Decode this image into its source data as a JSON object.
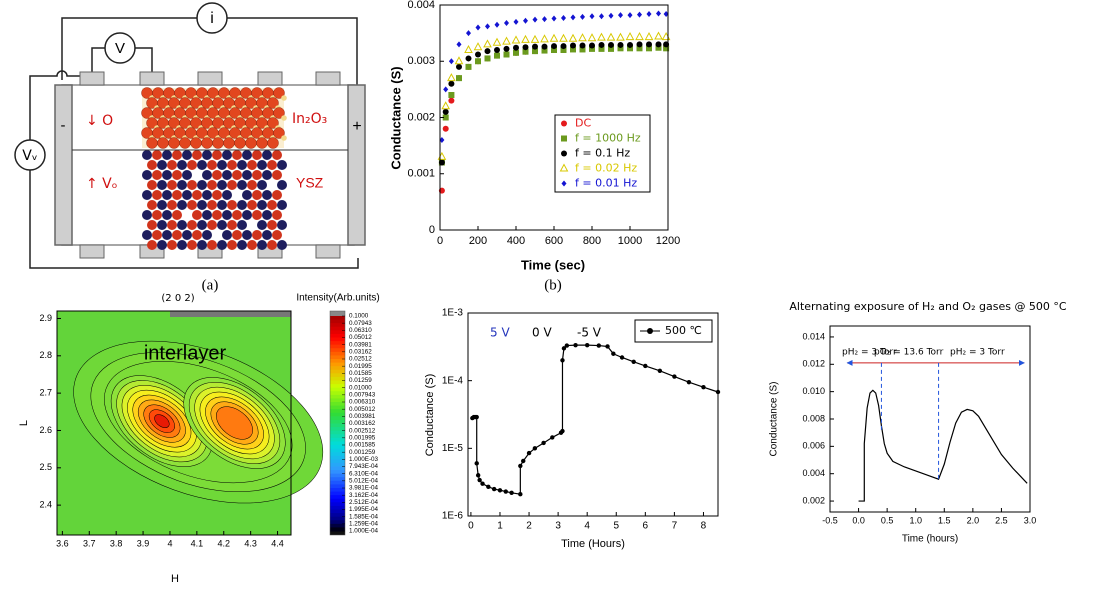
{
  "diagram": {
    "current_meter": "i",
    "voltmeter": "V",
    "voltage_source": "Vᵥ",
    "minus": "-",
    "plus": "+",
    "oxygen_label": "↓ O",
    "top_layer": "In₂O₃",
    "vacancy_label": "↑ Vₒ",
    "bottom_layer": "YSZ",
    "caption": "(a)"
  },
  "chart_data": [
    {
      "type": "scatter",
      "caption": "(b)",
      "xlabel": "Time (sec)",
      "ylabel": "Conductance (S)",
      "xlim": [
        0,
        1200
      ],
      "ylim": [
        0,
        0.004
      ],
      "xticks": [
        0,
        200,
        400,
        600,
        800,
        1000,
        1200
      ],
      "yticks": [
        0,
        0.001,
        0.002,
        0.003,
        0.004
      ],
      "legend": "lower right",
      "x": [
        10,
        30,
        60,
        100,
        150,
        200,
        250,
        300,
        350,
        400,
        450,
        500,
        550,
        600,
        650,
        700,
        750,
        800,
        850,
        900,
        950,
        1000,
        1050,
        1100,
        1150,
        1190
      ],
      "series": [
        {
          "name": "DC",
          "color": "#e41a1c",
          "marker": "circle",
          "values": [
            0.0007,
            0.0018,
            0.0023,
            0.0027,
            0.0029,
            0.003,
            0.00305,
            0.0031,
            0.00312,
            0.00315,
            0.00317,
            0.00318,
            0.0032,
            0.0032,
            0.00321,
            0.00322,
            0.00322,
            0.00323,
            0.00323,
            0.00324,
            0.00324,
            0.00325,
            0.00325,
            0.00325,
            0.00326,
            0.00326
          ]
        },
        {
          "name": "f = 1000 Hz",
          "color": "#6b9a1e",
          "marker": "square",
          "values": [
            0.0012,
            0.002,
            0.0024,
            0.0027,
            0.0029,
            0.003,
            0.00305,
            0.0031,
            0.00312,
            0.00315,
            0.00317,
            0.00318,
            0.00319,
            0.0032,
            0.0032,
            0.00321,
            0.00321,
            0.00322,
            0.00322,
            0.00322,
            0.00323,
            0.00323,
            0.00323,
            0.00323,
            0.00324,
            0.00323
          ]
        },
        {
          "name": "f = 0.1 Hz",
          "color": "#000000",
          "marker": "circle",
          "values": [
            0.0012,
            0.0021,
            0.0026,
            0.0029,
            0.00305,
            0.00312,
            0.00318,
            0.0032,
            0.00322,
            0.00324,
            0.00325,
            0.00326,
            0.00326,
            0.00327,
            0.00327,
            0.00328,
            0.00328,
            0.00328,
            0.00329,
            0.00329,
            0.00329,
            0.00329,
            0.0033,
            0.0033,
            0.0033,
            0.0033
          ]
        },
        {
          "name": "f = 0.02 Hz",
          "color": "#d8c800",
          "marker": "triangle",
          "values": [
            0.0013,
            0.0022,
            0.0027,
            0.003,
            0.0032,
            0.00325,
            0.0033,
            0.00333,
            0.00335,
            0.00337,
            0.00338,
            0.00338,
            0.00339,
            0.0034,
            0.0034,
            0.0034,
            0.00341,
            0.00341,
            0.00342,
            0.00342,
            0.00342,
            0.00343,
            0.00343,
            0.00343,
            0.00344,
            0.00343
          ]
        },
        {
          "name": "f = 0.01 Hz",
          "color": "#1414d2",
          "marker": "diamond",
          "values": [
            0.0016,
            0.0025,
            0.003,
            0.0033,
            0.0035,
            0.0036,
            0.00362,
            0.00365,
            0.00368,
            0.0037,
            0.00372,
            0.00374,
            0.00375,
            0.00376,
            0.00377,
            0.00378,
            0.00379,
            0.0038,
            0.0038,
            0.00381,
            0.00382,
            0.00382,
            0.00383,
            0.00384,
            0.00385,
            0.00384
          ]
        }
      ]
    },
    {
      "type": "contour",
      "title": "(2 0 2)",
      "xlabel": "H",
      "ylabel": "L",
      "annotation": "interlayer",
      "colorbar_label": "Intensity(Arb.units)",
      "xlim": [
        3.58,
        4.45
      ],
      "ylim": [
        2.32,
        2.92
      ],
      "xticks": [
        3.6,
        3.7,
        3.8,
        3.9,
        4.0,
        4.1,
        4.2,
        4.3,
        4.4
      ],
      "yticks": [
        2.4,
        2.5,
        2.6,
        2.7,
        2.8,
        2.9
      ],
      "peaks": [
        {
          "x": 3.97,
          "y": 2.625
        },
        {
          "x": 4.24,
          "y": 2.62
        }
      ],
      "log_c": true,
      "clim": [
        0.0001,
        0.1
      ],
      "cticks": [
        {
          "value": 0.1,
          "label": "0.1000"
        },
        0.07943,
        {
          "value": 0.0631,
          "label": "0.06310"
        },
        0.05012,
        0.03981,
        0.03162,
        0.02512,
        0.01995,
        0.01585,
        0.01259,
        {
          "value": 0.01,
          "label": "0.01000"
        },
        0.007943,
        {
          "value": 0.00631,
          "label": "0.006310"
        },
        0.005012,
        0.003981,
        0.003162,
        0.002512,
        0.001995,
        0.001585,
        0.001259,
        {
          "value": 0.001,
          "label": "1.000E-03"
        },
        {
          "value": 0.0007943,
          "label": "7.943E-04"
        },
        {
          "value": 0.000631,
          "label": "6.310E-04"
        },
        {
          "value": 0.0005012,
          "label": "5.012E-04"
        },
        {
          "value": 0.0003981,
          "label": "3.981E-04"
        },
        {
          "value": 0.0003162,
          "label": "3.162E-04"
        },
        {
          "value": 0.0002512,
          "label": "2.512E-04"
        },
        {
          "value": 0.0001995,
          "label": "1.995E-04"
        },
        {
          "value": 0.0001585,
          "label": "1.585E-04"
        },
        {
          "value": 0.0001259,
          "label": "1.259E-04"
        },
        {
          "value": 0.0001,
          "label": "1.000E-04"
        }
      ]
    },
    {
      "type": "line",
      "xlabel": "Time (Hours)",
      "ylabel": "Conductance (S)",
      "log_y": true,
      "xlim": [
        -0.1,
        8.5
      ],
      "ylim": [
        1e-06,
        0.001
      ],
      "xticks": [
        0,
        1,
        2,
        3,
        4,
        5,
        6,
        7,
        8
      ],
      "yticks": [
        {
          "value": 1e-06,
          "label": "1E-6"
        },
        {
          "value": 1e-05,
          "label": "1E-5"
        },
        {
          "value": 0.0001,
          "label": "1E-4"
        },
        {
          "value": 0.001,
          "label": "1E-3"
        }
      ],
      "annotations": [
        {
          "text": "5 V",
          "color": "#2233bb"
        },
        {
          "text": "0 V",
          "color": "#000000"
        },
        {
          "text": "-5 V",
          "color": "#000000"
        }
      ],
      "legend": "upper right",
      "x": [
        0.05,
        0.1,
        0.15,
        0.2,
        0.2,
        0.25,
        0.3,
        0.4,
        0.6,
        0.8,
        1.0,
        1.2,
        1.4,
        1.7,
        1.7,
        1.8,
        2.0,
        2.2,
        2.5,
        2.8,
        3.1,
        3.15,
        3.15,
        3.2,
        3.3,
        3.6,
        4.0,
        4.4,
        4.7,
        4.9,
        5.2,
        5.6,
        6.0,
        6.5,
        7.0,
        7.5,
        8.0,
        8.5
      ],
      "series": [
        {
          "name": "500 ℃",
          "color": "#000000",
          "marker": "circle",
          "values": [
            2.8e-05,
            2.9e-05,
            2.9e-05,
            2.9e-05,
            6e-06,
            4e-06,
            3.4e-06,
            3e-06,
            2.7e-06,
            2.5e-06,
            2.4e-06,
            2.3e-06,
            2.2e-06,
            2.1e-06,
            5.5e-06,
            6.5e-06,
            8.5e-06,
            1e-05,
            1.2e-05,
            1.45e-05,
            1.7e-05,
            1.8e-05,
            0.0002,
            0.0003,
            0.00033,
            0.000335,
            0.000335,
            0.00033,
            0.00032,
            0.00025,
            0.00022,
            0.00019,
            0.000165,
            0.00014,
            0.000115,
            9.5e-05,
            8e-05,
            6.8e-05
          ]
        }
      ]
    },
    {
      "type": "line",
      "title": "Alternating exposure of H₂ and O₂ gases @ 500 °C",
      "xlabel": "Time (hours)",
      "ylabel": "Conductance (S)",
      "xlim": [
        -0.5,
        3.0
      ],
      "ylim": [
        0.0012,
        0.0148
      ],
      "xticks": [
        -0.5,
        {
          "value": 0,
          "label": "0.0"
        },
        0.5,
        {
          "value": 1,
          "label": "1.0"
        },
        1.5,
        {
          "value": 2,
          "label": "2.0"
        },
        2.5,
        {
          "value": 3,
          "label": "3.0"
        }
      ],
      "yticks": [
        0.002,
        0.004,
        0.006,
        0.008,
        {
          "value": 0.01,
          "label": "0.010"
        },
        0.012,
        0.014
      ],
      "x": [
        0.0,
        0.1,
        0.1,
        0.15,
        0.2,
        0.25,
        0.3,
        0.35,
        0.4,
        0.45,
        0.5,
        0.6,
        0.8,
        1.0,
        1.2,
        1.4,
        1.5,
        1.6,
        1.7,
        1.8,
        1.9,
        2.0,
        2.1,
        2.3,
        2.5,
        2.7,
        2.95
      ],
      "values": [
        0.002,
        0.002,
        0.0062,
        0.0088,
        0.0099,
        0.0101,
        0.0099,
        0.009,
        0.0075,
        0.0062,
        0.0055,
        0.0049,
        0.0045,
        0.0042,
        0.0039,
        0.0036,
        0.0047,
        0.0063,
        0.0077,
        0.0085,
        0.0087,
        0.0086,
        0.0082,
        0.0068,
        0.0054,
        0.0044,
        0.0033
      ],
      "color": "#000000",
      "annotations": [
        {
          "text": "pH₂ = 3 Torr",
          "color": "#000000"
        },
        {
          "text": "pO₂ = 13.6 Torr",
          "color": "#000000"
        },
        {
          "text": "pH₂ = 3 Torr",
          "color": "#000000"
        }
      ],
      "arrow": {
        "y": 0.0121,
        "x0": -0.2,
        "x1": 2.9,
        "color": "#cc2222"
      },
      "vlines": [
        {
          "x": 0.4,
          "y0": 0.0121,
          "y1": 0.0072
        },
        {
          "x": 1.4,
          "y0": 0.0121,
          "y1": 0.0036
        }
      ],
      "vline_color": "#2255dd"
    }
  ]
}
